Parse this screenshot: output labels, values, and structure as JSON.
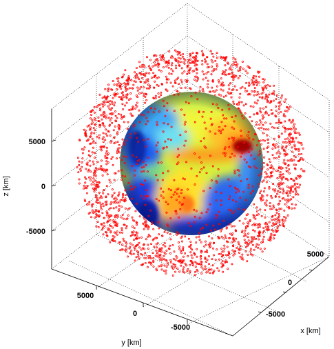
{
  "chart_data": {
    "type": "scatter",
    "dimensions": 3,
    "title": "",
    "xlabel": "x [km]",
    "ylabel": "y [km]",
    "zlabel": "z [km]",
    "x_ticks": [
      "-5000",
      "0",
      "5000"
    ],
    "y_ticks": [
      "5000",
      "0",
      "-5000"
    ],
    "z_ticks": [
      "5000",
      "0",
      "-5000"
    ],
    "xlim": [
      -8000,
      8000
    ],
    "ylim": [
      -8000,
      8000
    ],
    "zlim": [
      -8000,
      8000
    ],
    "grid": true,
    "legend": false,
    "surface": {
      "name": "globe",
      "radius_km": 6371,
      "colormap": "jet"
    },
    "scatter": {
      "color": "#ff0000",
      "marker": "o",
      "shell_radius_km": [
        7000,
        8300
      ],
      "count_approx": 2600
    }
  }
}
